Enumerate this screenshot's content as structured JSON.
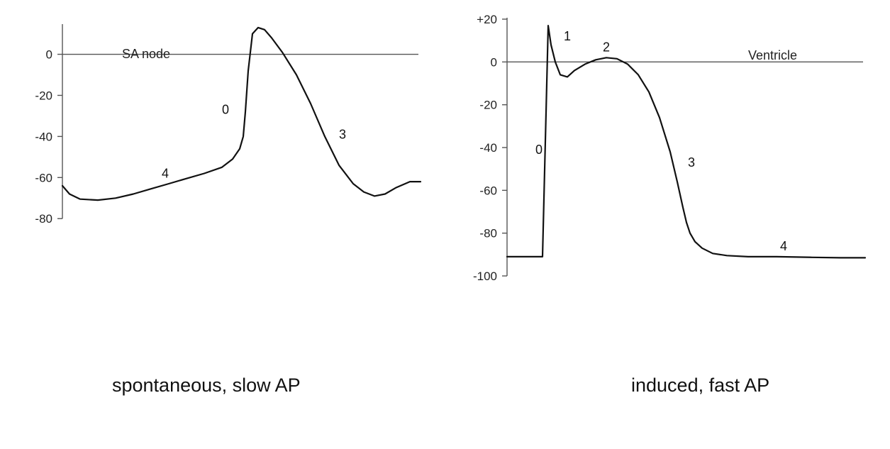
{
  "captions": {
    "left": "spontaneous, slow AP",
    "right": "induced, fast AP"
  },
  "chart_data": [
    {
      "type": "line",
      "title": "SA node",
      "xlabel": "",
      "ylabel": "",
      "ylim": [
        -82,
        14
      ],
      "yticks": [
        0,
        -20,
        -40,
        -60,
        -80
      ],
      "ytick_labels": [
        "0",
        "-20",
        "-40",
        "-60",
        "-80"
      ],
      "grid": false,
      "baseline_y": 0,
      "x": [
        0,
        10,
        25,
        50,
        75,
        100,
        125,
        150,
        175,
        200,
        225,
        240,
        250,
        255,
        258,
        262,
        268,
        276,
        285,
        295,
        310,
        330,
        350,
        370,
        390,
        410,
        425,
        440,
        455,
        470,
        490,
        505
      ],
      "series": [
        {
          "values": [
            -64,
            -68,
            -70.5,
            -71,
            -70,
            -68,
            -65.5,
            -63,
            -60.5,
            -58,
            -55,
            -51,
            -46,
            -40,
            -28,
            -8,
            10,
            13,
            12,
            8,
            1,
            -10,
            -24,
            -40,
            -54,
            -63,
            -67,
            -69,
            -68,
            -65,
            -62,
            -62
          ]
        }
      ],
      "phase_labels": [
        {
          "text": "0",
          "x": 225,
          "y": -29
        },
        {
          "text": "3",
          "x": 390,
          "y": -41
        },
        {
          "text": "4",
          "x": 140,
          "y": -60
        }
      ],
      "line_color": "#111111",
      "axis_color": "#555555"
    },
    {
      "type": "line",
      "title": "Ventricle",
      "xlabel": "",
      "ylabel": "",
      "ylim": [
        -100,
        20
      ],
      "yticks": [
        20,
        0,
        -20,
        -40,
        -60,
        -80,
        -100
      ],
      "ytick_labels": [
        "+20",
        "0",
        "-20",
        "-40",
        "-60",
        "-80",
        "-100"
      ],
      "grid": false,
      "baseline_y": 0,
      "x": [
        0,
        48,
        50,
        58,
        62,
        68,
        75,
        85,
        95,
        110,
        125,
        140,
        155,
        170,
        185,
        200,
        215,
        230,
        240,
        248,
        253,
        258,
        265,
        275,
        290,
        310,
        340,
        380,
        430,
        470,
        505
      ],
      "series": [
        {
          "values": [
            -91,
            -91,
            -91,
            17,
            8,
            0,
            -6,
            -7,
            -4,
            -1,
            1,
            2,
            1.5,
            -1,
            -6,
            -14,
            -26,
            -42,
            -56,
            -68,
            -75,
            -80,
            -84,
            -87,
            -89.5,
            -90.5,
            -91,
            -91,
            -91.3,
            -91.5,
            -91.5
          ]
        }
      ],
      "phase_labels": [
        {
          "text": "0",
          "x": 40,
          "y": -43
        },
        {
          "text": "1",
          "x": 80,
          "y": 10
        },
        {
          "text": "2",
          "x": 135,
          "y": 5
        },
        {
          "text": "3",
          "x": 255,
          "y": -49
        },
        {
          "text": "4",
          "x": 385,
          "y": -88
        }
      ],
      "line_color": "#111111",
      "axis_color": "#555555"
    }
  ]
}
